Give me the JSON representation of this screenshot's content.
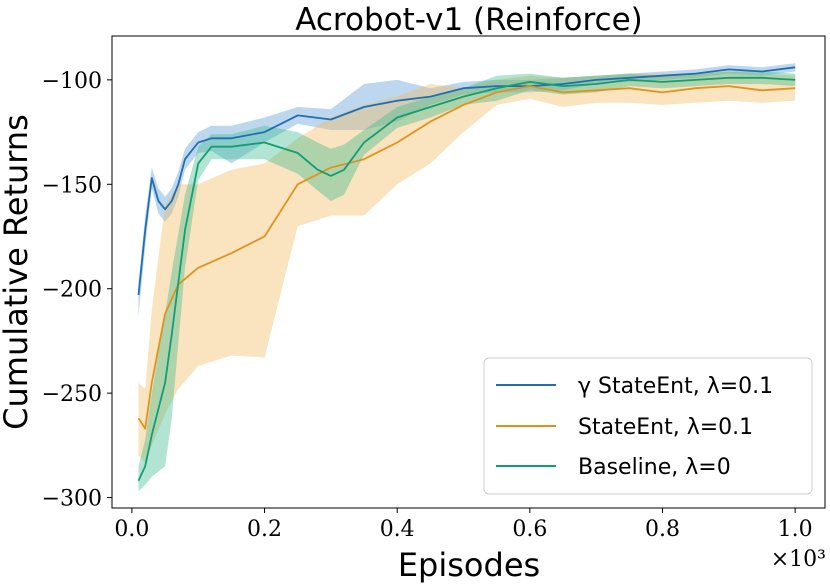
{
  "chart_data": {
    "type": "line",
    "title": "Acrobot-v1 (Reinforce)",
    "xlabel": "Episodes",
    "ylabel": "Cumulative Returns",
    "x_scale_label": "×10³",
    "xlim": [
      -0.03,
      1.045
    ],
    "ylim": [
      -305,
      -79
    ],
    "xticks": [
      0.0,
      0.2,
      0.4,
      0.6,
      0.8,
      1.0
    ],
    "xtick_labels": [
      "0.0",
      "0.2",
      "0.4",
      "0.6",
      "0.8",
      "1.0"
    ],
    "yticks": [
      -100,
      -150,
      -200,
      -250,
      -300
    ],
    "ytick_labels": [
      "−100",
      "−150",
      "−200",
      "−250",
      "−300"
    ],
    "legend_position": "lower-right",
    "series": [
      {
        "name": "γ StateEnt, λ=0.1",
        "color": "#1f6fb2",
        "band_color": "#5b9bd5",
        "x": [
          0.01,
          0.02,
          0.03,
          0.04,
          0.05,
          0.06,
          0.07,
          0.08,
          0.1,
          0.12,
          0.15,
          0.2,
          0.25,
          0.3,
          0.35,
          0.4,
          0.45,
          0.5,
          0.55,
          0.6,
          0.65,
          0.7,
          0.75,
          0.8,
          0.85,
          0.9,
          0.95,
          1.0
        ],
        "y": [
          -203,
          -172,
          -147,
          -158,
          -162,
          -158,
          -150,
          -138,
          -130,
          -128,
          -128,
          -125,
          -117,
          -119,
          -113,
          -110,
          -108,
          -104,
          -103,
          -103,
          -102,
          -100,
          -99,
          -98,
          -97,
          -95,
          -96,
          -94
        ],
        "upper": [
          -197,
          -165,
          -142,
          -152,
          -156,
          -152,
          -144,
          -133,
          -125,
          -122,
          -122,
          -118,
          -113,
          -114,
          -102,
          -100,
          -104,
          -101,
          -100,
          -100,
          -99,
          -98,
          -97,
          -96,
          -95,
          -93,
          -94,
          -92
        ],
        "lower": [
          -213,
          -180,
          -152,
          -164,
          -168,
          -164,
          -156,
          -143,
          -135,
          -134,
          -140,
          -130,
          -121,
          -124,
          -124,
          -120,
          -112,
          -107,
          -106,
          -106,
          -105,
          -102,
          -101,
          -100,
          -99,
          -97,
          -98,
          -96
        ]
      },
      {
        "name": "StateEnt, λ=0.1",
        "color": "#e0931c",
        "band_color": "#f2b85f",
        "x": [
          0.01,
          0.02,
          0.03,
          0.05,
          0.07,
          0.1,
          0.15,
          0.2,
          0.25,
          0.3,
          0.35,
          0.4,
          0.45,
          0.5,
          0.55,
          0.6,
          0.65,
          0.7,
          0.75,
          0.8,
          0.85,
          0.9,
          0.95,
          1.0
        ],
        "y": [
          -262,
          -267,
          -245,
          -212,
          -198,
          -190,
          -183,
          -175,
          -150,
          -142,
          -138,
          -130,
          -120,
          -112,
          -106,
          -103,
          -106,
          -105,
          -104,
          -106,
          -104,
          -103,
          -105,
          -104
        ],
        "upper": [
          -245,
          -248,
          -210,
          -160,
          -150,
          -150,
          -143,
          -140,
          -128,
          -118,
          -112,
          -108,
          -102,
          -104,
          -100,
          -98,
          -99,
          -98,
          -97,
          -97,
          -97,
          -96,
          -97,
          -98
        ],
        "lower": [
          -280,
          -283,
          -275,
          -260,
          -248,
          -237,
          -232,
          -233,
          -170,
          -165,
          -165,
          -150,
          -140,
          -125,
          -112,
          -109,
          -113,
          -111,
          -111,
          -112,
          -111,
          -110,
          -111,
          -110
        ]
      },
      {
        "name": "Baseline, λ=0",
        "color": "#129e73",
        "band_color": "#3dbb8f",
        "x": [
          0.01,
          0.02,
          0.03,
          0.05,
          0.06,
          0.08,
          0.1,
          0.12,
          0.15,
          0.2,
          0.25,
          0.28,
          0.3,
          0.32,
          0.35,
          0.4,
          0.45,
          0.5,
          0.55,
          0.6,
          0.65,
          0.7,
          0.75,
          0.8,
          0.85,
          0.9,
          0.95,
          1.0
        ],
        "y": [
          -292,
          -285,
          -270,
          -245,
          -222,
          -172,
          -140,
          -132,
          -132,
          -130,
          -135,
          -143,
          -146,
          -143,
          -130,
          -118,
          -113,
          -108,
          -104,
          -101,
          -103,
          -102,
          -100,
          -101,
          -100,
          -99,
          -99,
          -100
        ],
        "upper": [
          -285,
          -272,
          -250,
          -212,
          -192,
          -155,
          -132,
          -126,
          -126,
          -122,
          -125,
          -130,
          -133,
          -131,
          -124,
          -113,
          -108,
          -104,
          -98,
          -97,
          -99,
          -98,
          -97,
          -98,
          -97,
          -96,
          -96,
          -97
        ],
        "lower": [
          -297,
          -294,
          -290,
          -285,
          -262,
          -190,
          -148,
          -138,
          -138,
          -138,
          -145,
          -153,
          -158,
          -155,
          -136,
          -123,
          -118,
          -112,
          -110,
          -105,
          -107,
          -106,
          -103,
          -104,
          -103,
          -102,
          -102,
          -103
        ]
      }
    ]
  }
}
